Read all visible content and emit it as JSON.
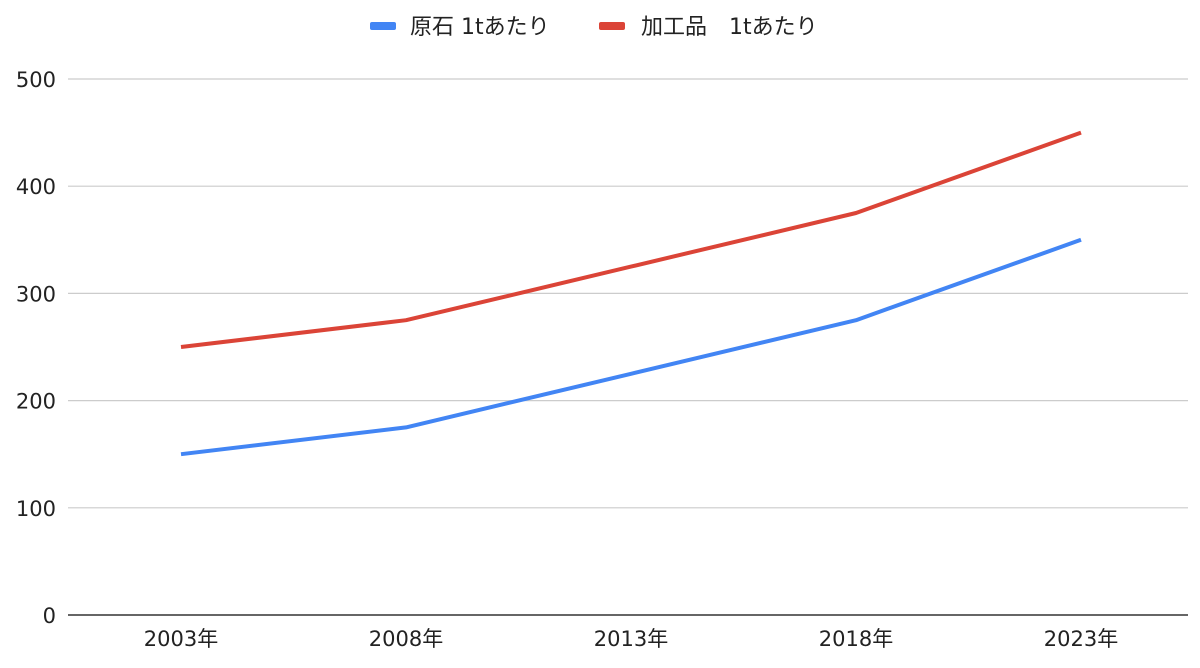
{
  "chart_data": {
    "type": "line",
    "title": "",
    "xlabel": "",
    "ylabel": "",
    "categories": [
      "2003年",
      "2008年",
      "2013年",
      "2018年",
      "2023年"
    ],
    "series": [
      {
        "name": "原石 1tあたり",
        "color": "#4285f4",
        "values": [
          150,
          175,
          225,
          275,
          350
        ]
      },
      {
        "name": "加工品　1tあたり",
        "color": "#db4437",
        "values": [
          250,
          275,
          325,
          375,
          450
        ]
      }
    ],
    "y_ticks": [
      "0",
      "100",
      "200",
      "300",
      "400",
      "500"
    ],
    "ylim": [
      0,
      500
    ],
    "grid": true,
    "legend_position": "top-center"
  }
}
